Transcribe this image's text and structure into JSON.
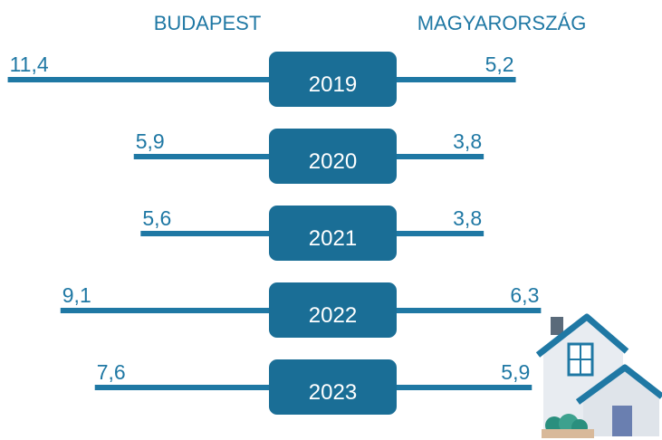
{
  "chart_data": {
    "type": "butterfly",
    "categories": [
      "2019",
      "2020",
      "2021",
      "2022",
      "2023"
    ],
    "box_color": "#1a6e96",
    "series": [
      {
        "name": "BUDAPEST",
        "color": "#1f78a4",
        "values": [
          11.4,
          5.9,
          5.6,
          9.1,
          7.6
        ],
        "value_labels": [
          "11,4",
          "5,9",
          "5,6",
          "9,1",
          "7,6"
        ]
      },
      {
        "name": "MAGYARORSZÁG",
        "color": "#1f78a4",
        "values": [
          5.2,
          3.8,
          3.8,
          6.3,
          5.9
        ],
        "value_labels": [
          "5,2",
          "3,8",
          "3,8",
          "6,3",
          "5,9"
        ]
      }
    ]
  }
}
